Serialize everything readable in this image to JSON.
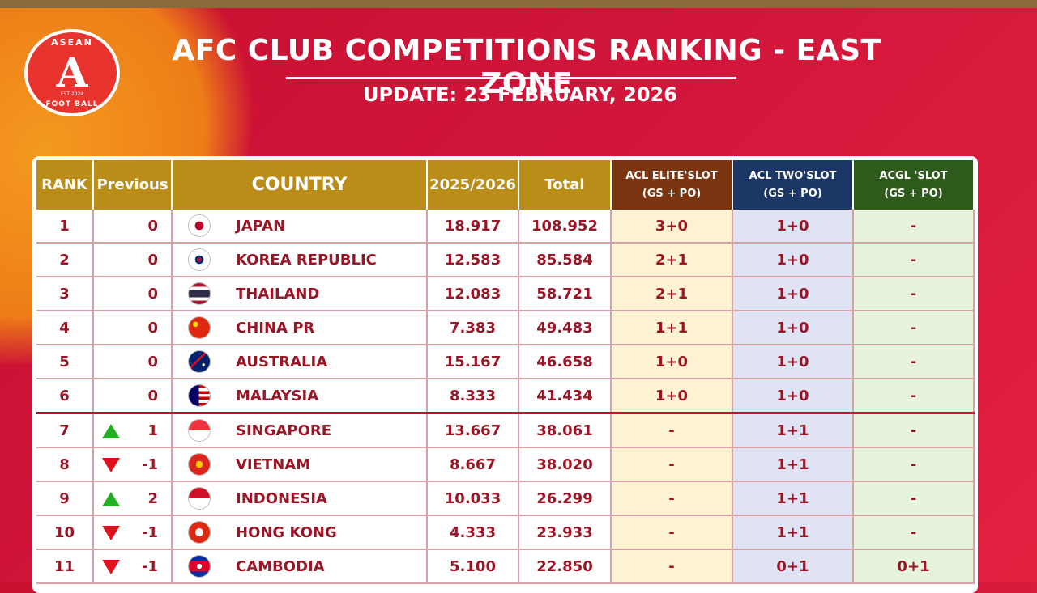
{
  "logo": {
    "top_text": "ASEAN",
    "letter": "A",
    "est": "EST 2024",
    "bottom_text": "FOOT BALL"
  },
  "title": "AFC CLUB COMPETITIONS RANKING - EAST ZONE",
  "subtitle": "UPDATE: 23 FEBRUARY, 2026",
  "headers": {
    "rank": "RANK",
    "previous": "Previous",
    "country": "COUNTRY",
    "season": "2025/2026",
    "total": "Total",
    "elite": "ACL ELITE'SLOT",
    "elite_sub": "(GS + PO)",
    "two": "ACL TWO'SLOT",
    "two_sub": "(GS + PO)",
    "acgl": "ACGL 'SLOT",
    "acgl_sub": "(GS + PO)"
  },
  "colors": {
    "arrow_up": "#22b022",
    "arrow_down": "#e0101c"
  },
  "rows": [
    {
      "rank": "1",
      "trend": "none",
      "previous": "0",
      "flag": "japan-flag-icon",
      "country": "JAPAN",
      "season": "18.917",
      "total": "108.952",
      "elite": "3+0",
      "two": "1+0",
      "acgl": "-"
    },
    {
      "rank": "2",
      "trend": "none",
      "previous": "0",
      "flag": "korea-flag-icon",
      "country": "KOREA REPUBLIC",
      "season": "12.583",
      "total": "85.584",
      "elite": "2+1",
      "two": "1+0",
      "acgl": "-"
    },
    {
      "rank": "3",
      "trend": "none",
      "previous": "0",
      "flag": "thailand-flag-icon",
      "country": "THAILAND",
      "season": "12.083",
      "total": "58.721",
      "elite": "2+1",
      "two": "1+0",
      "acgl": "-"
    },
    {
      "rank": "4",
      "trend": "none",
      "previous": "0",
      "flag": "china-flag-icon",
      "country": "CHINA PR",
      "season": "7.383",
      "total": "49.483",
      "elite": "1+1",
      "two": "1+0",
      "acgl": "-"
    },
    {
      "rank": "5",
      "trend": "none",
      "previous": "0",
      "flag": "australia-flag-icon",
      "country": "AUSTRALIA",
      "season": "15.167",
      "total": "46.658",
      "elite": "1+0",
      "two": "1+0",
      "acgl": "-"
    },
    {
      "rank": "6",
      "trend": "none",
      "previous": "0",
      "flag": "malaysia-flag-icon",
      "country": "MALAYSIA",
      "season": "8.333",
      "total": "41.434",
      "elite": "1+0",
      "two": "1+0",
      "acgl": "-"
    },
    {
      "rank": "7",
      "trend": "up",
      "previous": "1",
      "flag": "singapore-flag-icon",
      "country": "SINGAPORE",
      "season": "13.667",
      "total": "38.061",
      "elite": "-",
      "two": "1+1",
      "acgl": "-"
    },
    {
      "rank": "8",
      "trend": "down",
      "previous": "-1",
      "flag": "vietnam-flag-icon",
      "country": "VIETNAM",
      "season": "8.667",
      "total": "38.020",
      "elite": "-",
      "two": "1+1",
      "acgl": "-"
    },
    {
      "rank": "9",
      "trend": "up",
      "previous": "2",
      "flag": "indonesia-flag-icon",
      "country": "INDONESIA",
      "season": "10.033",
      "total": "26.299",
      "elite": "-",
      "two": "1+1",
      "acgl": "-"
    },
    {
      "rank": "10",
      "trend": "down",
      "previous": "-1",
      "flag": "hongkong-flag-icon",
      "country": "HONG KONG",
      "season": "4.333",
      "total": "23.933",
      "elite": "-",
      "two": "1+1",
      "acgl": "-"
    },
    {
      "rank": "11",
      "trend": "down",
      "previous": "-1",
      "flag": "cambodia-flag-icon",
      "country": "CAMBODIA",
      "season": "5.100",
      "total": "22.850",
      "elite": "-",
      "two": "0+1",
      "acgl": "0+1"
    }
  ]
}
